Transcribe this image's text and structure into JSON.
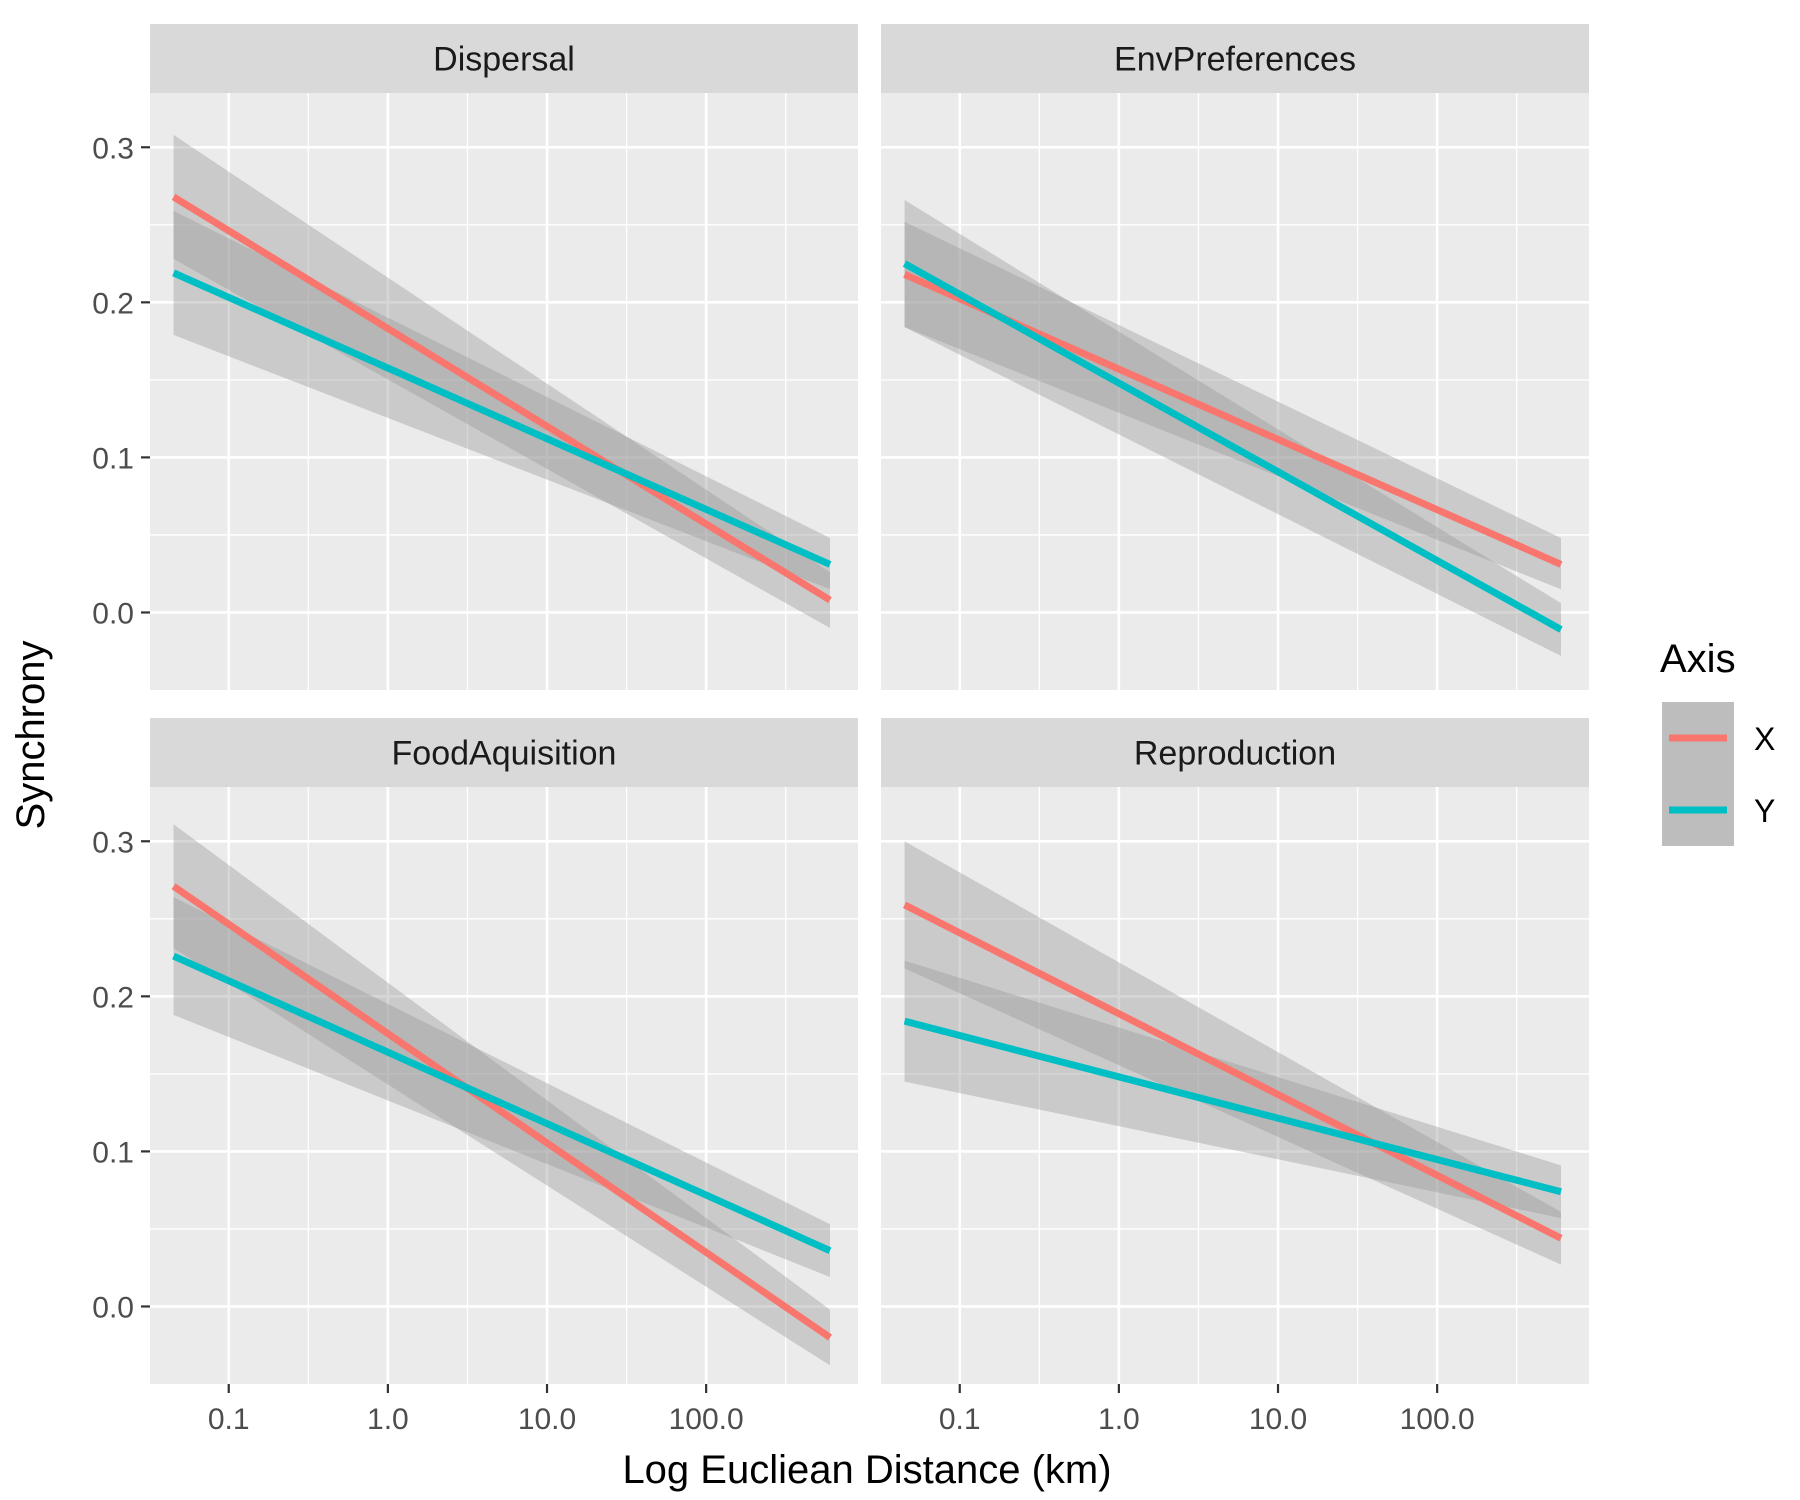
{
  "chart_data": {
    "type": "line",
    "xlabel": "Log Euclidean Distance (km)",
    "xlabel_display": "Log Eucliean Distance (km)",
    "ylabel": "Synchrony",
    "x_scale": "log10",
    "x_ticks": [
      0.1,
      1.0,
      10.0,
      100.0
    ],
    "x_tick_labels": [
      "0.1",
      "1.0",
      "10.0",
      "100.0"
    ],
    "xlim": [
      0.032,
      900
    ],
    "y_ticks": [
      0.0,
      0.1,
      0.2,
      0.3
    ],
    "y_tick_labels": [
      "0.0",
      "0.1",
      "0.2",
      "0.3"
    ],
    "ylim": [
      -0.05,
      0.335
    ],
    "grid": true,
    "legend": {
      "title": "Axis",
      "position": "right",
      "entries": [
        {
          "label": "X",
          "color": "#F8766D"
        },
        {
          "label": "Y",
          "color": "#00BFC4"
        }
      ]
    },
    "band_color": "#999999",
    "panels": [
      {
        "title": "Dispersal",
        "series": [
          {
            "name": "X",
            "color": "#F8766D",
            "x": [
              0.045,
              600
            ],
            "y": [
              0.268,
              0.008
            ],
            "lower": [
              0.228,
              -0.01
            ],
            "upper": [
              0.308,
              0.026
            ]
          },
          {
            "name": "Y",
            "color": "#00BFC4",
            "x": [
              0.045,
              600
            ],
            "y": [
              0.219,
              0.031
            ],
            "lower": [
              0.179,
              0.015
            ],
            "upper": [
              0.259,
              0.048
            ]
          }
        ]
      },
      {
        "title": "EnvPreferences",
        "series": [
          {
            "name": "X",
            "color": "#F8766D",
            "x": [
              0.045,
              600
            ],
            "y": [
              0.218,
              0.031
            ],
            "lower": [
              0.184,
              0.015
            ],
            "upper": [
              0.252,
              0.048
            ]
          },
          {
            "name": "Y",
            "color": "#00BFC4",
            "x": [
              0.045,
              600
            ],
            "y": [
              0.225,
              -0.011
            ],
            "lower": [
              0.184,
              -0.028
            ],
            "upper": [
              0.266,
              0.006
            ]
          }
        ]
      },
      {
        "title": "FoodAquisition",
        "series": [
          {
            "name": "X",
            "color": "#F8766D",
            "x": [
              0.045,
              600
            ],
            "y": [
              0.271,
              -0.02
            ],
            "lower": [
              0.231,
              -0.038
            ],
            "upper": [
              0.311,
              -0.002
            ]
          },
          {
            "name": "Y",
            "color": "#00BFC4",
            "x": [
              0.045,
              600
            ],
            "y": [
              0.226,
              0.036
            ],
            "lower": [
              0.188,
              0.019
            ],
            "upper": [
              0.264,
              0.053
            ]
          }
        ]
      },
      {
        "title": "Reproduction",
        "series": [
          {
            "name": "X",
            "color": "#F8766D",
            "x": [
              0.045,
              600
            ],
            "y": [
              0.259,
              0.044
            ],
            "lower": [
              0.218,
              0.027
            ],
            "upper": [
              0.3,
              0.061
            ]
          },
          {
            "name": "Y",
            "color": "#00BFC4",
            "x": [
              0.045,
              600
            ],
            "y": [
              0.184,
              0.074
            ],
            "lower": [
              0.145,
              0.057
            ],
            "upper": [
              0.223,
              0.091
            ]
          }
        ]
      }
    ]
  }
}
